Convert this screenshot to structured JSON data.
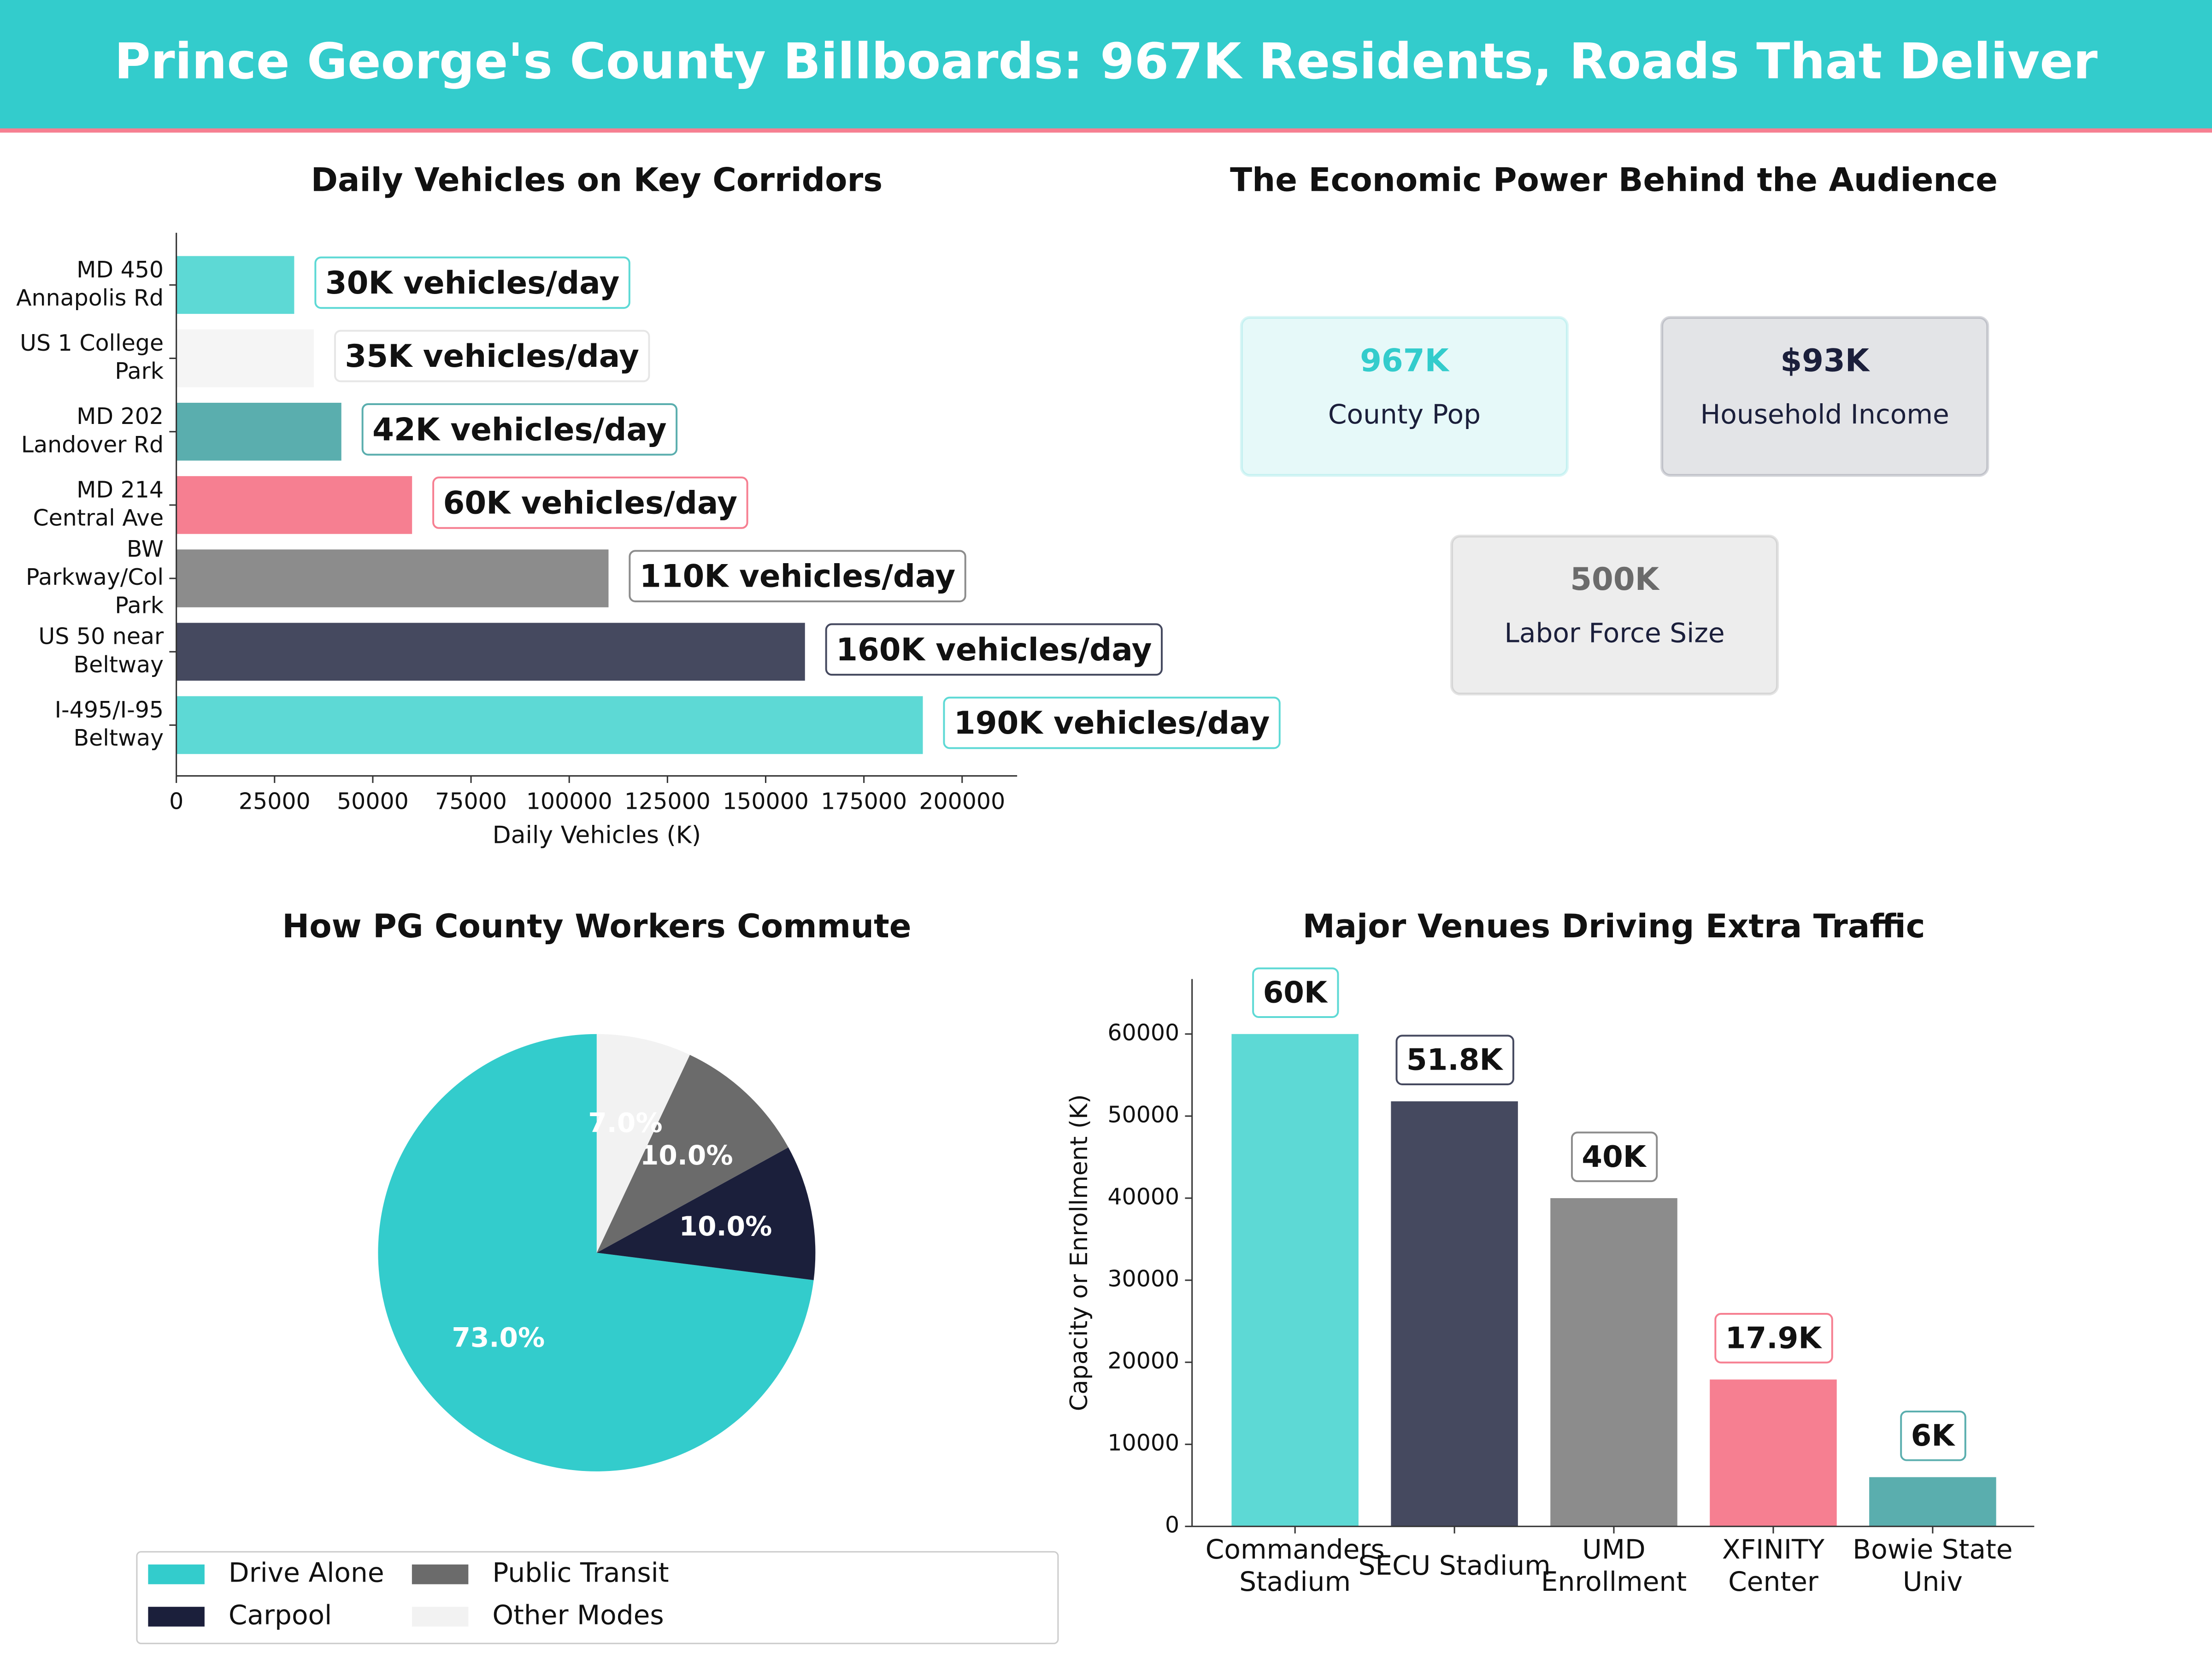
{
  "title": "Prince George's County Billboards: 967K Residents, Roads That Deliver",
  "chart_data": [
    {
      "type": "hbar",
      "title": "Daily Vehicles on Key Corridors",
      "xlabel": "Daily Vehicles (K)",
      "categories": [
        "MD 450\nAnnapolis Rd",
        "US 1 College\nPark",
        "MD 202\nLandover Rd",
        "MD 214\nCentral Ave",
        "BW\nParkway/Col\nPark",
        "US 50 near\nBeltway",
        "I-495/I-95\nBeltway"
      ],
      "values": [
        30000,
        35000,
        42000,
        60000,
        110000,
        160000,
        190000
      ],
      "value_labels": [
        "30K vehicles/day",
        "35K vehicles/day",
        "42K vehicles/day",
        "60K vehicles/day",
        "110K vehicles/day",
        "160K vehicles/day",
        "190K vehicles/day"
      ],
      "colors": [
        "#5dd9d5",
        "#f5f5f5",
        "#5aaeae",
        "#f67f91",
        "#8c8c8c",
        "#45495f",
        "#5dd9d5"
      ],
      "xlim": [
        0,
        214000
      ],
      "xticks": [
        0,
        25000,
        50000,
        75000,
        100000,
        125000,
        150000,
        175000,
        200000
      ]
    },
    {
      "type": "kpi",
      "title": "The Economic Power Behind the Audience",
      "cards": [
        {
          "value": "967K",
          "label": "County Pop",
          "color": "#33cccc"
        },
        {
          "value": "$93K",
          "label": "Household Income",
          "color": "#1b1f3b"
        },
        {
          "value": "500K",
          "label": "Labor Force Size",
          "color": "#6b6b6b"
        }
      ]
    },
    {
      "type": "pie",
      "title": "How PG County Workers Commute",
      "categories": [
        "Drive Alone",
        "Carpool",
        "Public Transit",
        "Other Modes"
      ],
      "values": [
        73,
        10,
        10,
        7
      ],
      "value_labels": [
        "73.0%",
        "10.0%",
        "10.0%",
        "7.0%"
      ],
      "colors": [
        "#33cccc",
        "#1b1f3b",
        "#6b6b6b",
        "#f2f2f2"
      ]
    },
    {
      "type": "bar",
      "title": "Major Venues Driving Extra Traffic",
      "ylabel": "Capacity or Enrollment (K)",
      "categories": [
        "Commanders\nStadium",
        "SECU Stadium",
        "UMD\nEnrollment",
        "XFINITY\nCenter",
        "Bowie State\nUniv"
      ],
      "values": [
        60000,
        51800,
        40000,
        17900,
        6000
      ],
      "value_labels": [
        "60K",
        "51.8K",
        "40K",
        "17.9K",
        "6K"
      ],
      "colors": [
        "#5dd9d5",
        "#45495f",
        "#8c8c8c",
        "#f67f91",
        "#5aaeae"
      ],
      "ylim": [
        0,
        66700
      ],
      "yticks": [
        0,
        10000,
        20000,
        30000,
        40000,
        50000,
        60000
      ]
    }
  ]
}
